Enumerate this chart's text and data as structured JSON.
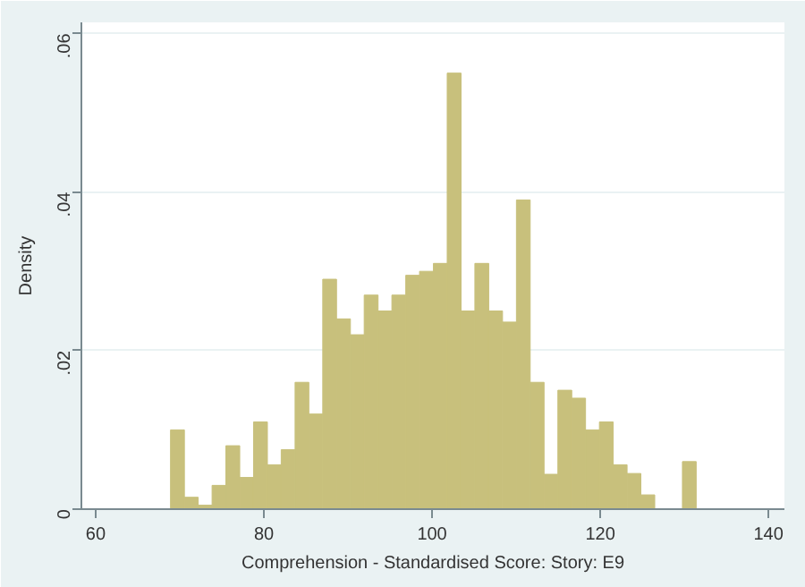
{
  "chart_data": {
    "type": "histogram",
    "xlabel": "Comprehension - Standardised Score: Story: E9",
    "ylabel": "Density",
    "color": "#c8c07c",
    "grid": "y",
    "bins": [
      68.9,
      70.55,
      72.19,
      73.84,
      75.48,
      77.13,
      78.77,
      80.42,
      82.06,
      83.71,
      85.35,
      87.0,
      88.64,
      90.29,
      91.93,
      93.58,
      95.22,
      96.87,
      98.51,
      100.16,
      101.8,
      103.45,
      105.09,
      106.74,
      108.38,
      110.03,
      111.67,
      113.32,
      114.96,
      116.61,
      118.25,
      119.9,
      121.54,
      123.19,
      124.83,
      126.48,
      128.12,
      129.77,
      131.41
    ],
    "values": [
      0.01,
      0.0015,
      0.0005,
      0.003,
      0.008,
      0.004,
      0.011,
      0.0056,
      0.0075,
      0.016,
      0.012,
      0.029,
      0.024,
      0.022,
      0.027,
      0.025,
      0.027,
      0.0295,
      0.03,
      0.031,
      0.055,
      0.025,
      0.031,
      0.025,
      0.0236,
      0.039,
      0.016,
      0.0044,
      0.015,
      0.014,
      0.01,
      0.011,
      0.0056,
      0.0045,
      0.0018,
      0,
      0,
      0.006
    ],
    "xlim": [
      58.3,
      141.9
    ],
    "ylim": [
      0,
      0.0614
    ],
    "xticks": [
      60,
      80,
      100,
      120,
      140
    ],
    "yticks": [
      {
        "value": 0,
        "label": "0"
      },
      {
        "value": 0.02,
        "label": ".02"
      },
      {
        "value": 0.04,
        "label": ".04"
      },
      {
        "value": 0.06,
        "label": ".06"
      }
    ]
  }
}
